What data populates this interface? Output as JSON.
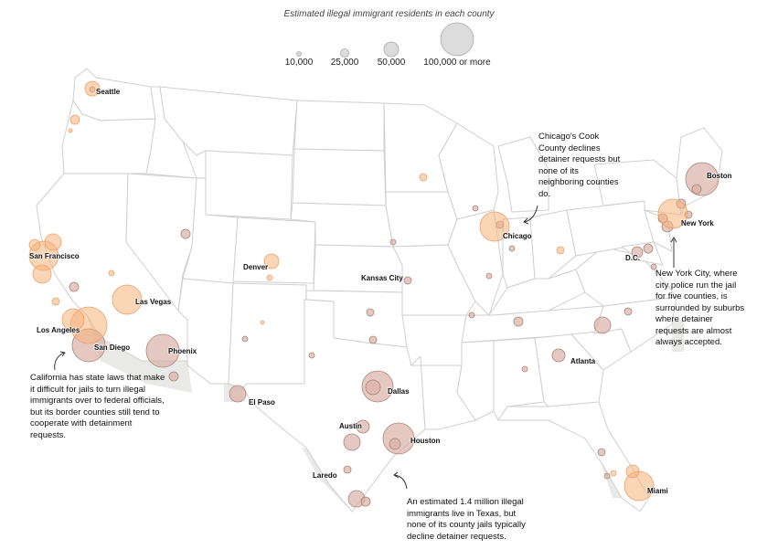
{
  "legend": {
    "title": "Estimated illegal immigrant residents in each county",
    "labels": [
      "10,000",
      "25,000",
      "50,000",
      "100,000 or more"
    ]
  },
  "colors": {
    "cooperative": "#e8b9a8",
    "declines": "#f6b27a",
    "state_fill": "#ffffff",
    "state_stroke": "#cfcfcf",
    "border_zone": "#e9e9e7",
    "legend_circle": "#dadada"
  },
  "cities": {
    "seattle": "Seattle",
    "san_francisco": "San Francisco",
    "denver": "Denver",
    "kansas_city": "Kansas City",
    "chicago": "Chicago",
    "new_york": "New York",
    "boston": "Boston",
    "dc": "D.C.",
    "las_vegas": "Las Vegas",
    "los_angeles": "Los Angeles",
    "san_diego": "San Diego",
    "phoenix": "Phoenix",
    "el_paso": "El Paso",
    "dallas": "Dallas",
    "austin": "Austin",
    "houston": "Houston",
    "laredo": "Laredo",
    "atlanta": "Atlanta",
    "miami": "Miami"
  },
  "annotations": {
    "chicago": "Chicago's Cook County declines detainer requests but none of its neighboring counties do.",
    "new_york": "New York City, where city police run the jail for five counties, is surrounded by suburbs where detainer requests are almost always accepted.",
    "california": "California has state laws that make it difficult for jails to turn illegal immigrants over to federal officials, but its border counties still tend to cooperate with detainment requests.",
    "texas": "An estimated 1.4 million illegal immigrants live in Texas, but none of its county jails typically decline detainer requests."
  }
}
